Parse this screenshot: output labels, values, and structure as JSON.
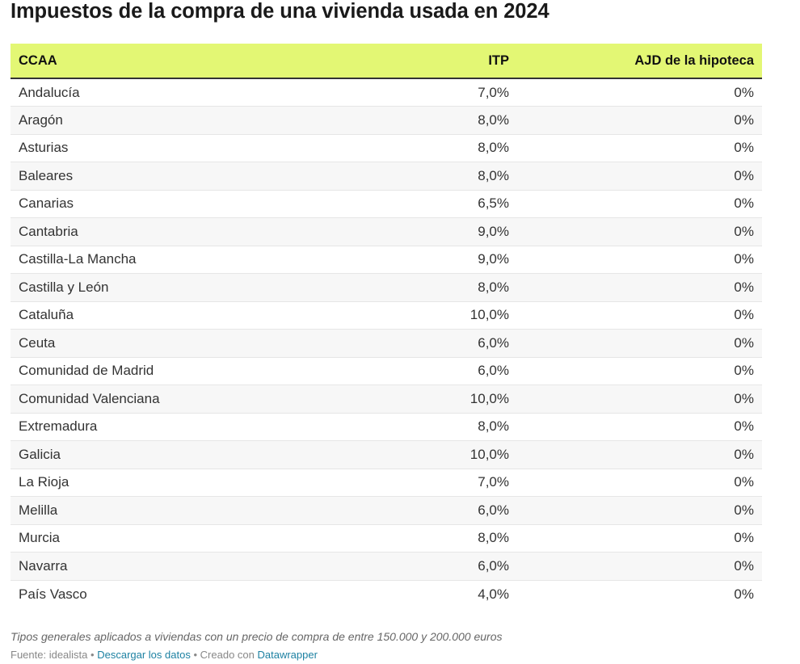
{
  "title": "Impuestos de la compra de una vivienda usada en 2024",
  "table": {
    "headers": [
      "CCAA",
      "ITP",
      "AJD de la hipoteca"
    ],
    "rows": [
      [
        "Andalucía",
        "7,0%",
        "0%"
      ],
      [
        "Aragón",
        "8,0%",
        "0%"
      ],
      [
        "Asturias",
        "8,0%",
        "0%"
      ],
      [
        "Baleares",
        "8,0%",
        "0%"
      ],
      [
        "Canarias",
        "6,5%",
        "0%"
      ],
      [
        "Cantabria",
        "9,0%",
        "0%"
      ],
      [
        "Castilla-La Mancha",
        "9,0%",
        "0%"
      ],
      [
        "Castilla y León",
        "8,0%",
        "0%"
      ],
      [
        "Cataluña",
        "10,0%",
        "0%"
      ],
      [
        "Ceuta",
        "6,0%",
        "0%"
      ],
      [
        "Comunidad de Madrid",
        "6,0%",
        "0%"
      ],
      [
        "Comunidad Valenciana",
        "10,0%",
        "0%"
      ],
      [
        "Extremadura",
        "8,0%",
        "0%"
      ],
      [
        "Galicia",
        "10,0%",
        "0%"
      ],
      [
        "La Rioja",
        "7,0%",
        "0%"
      ],
      [
        "Melilla",
        "6,0%",
        "0%"
      ],
      [
        "Murcia",
        "8,0%",
        "0%"
      ],
      [
        "Navarra",
        "6,0%",
        "0%"
      ],
      [
        "País Vasco",
        "4,0%",
        "0%"
      ]
    ]
  },
  "notes": "Tipos generales aplicados a viviendas con un precio de compra de entre 150.000 y 200.000 euros",
  "footer": {
    "source": "Fuente: idealista",
    "separator": "•",
    "download_link": "Descargar los datos",
    "created_with": "Creado con",
    "datawrapper_link": "Datawrapper"
  },
  "colors": {
    "header_bg": "#e3f774",
    "link": "#1d81a2"
  }
}
